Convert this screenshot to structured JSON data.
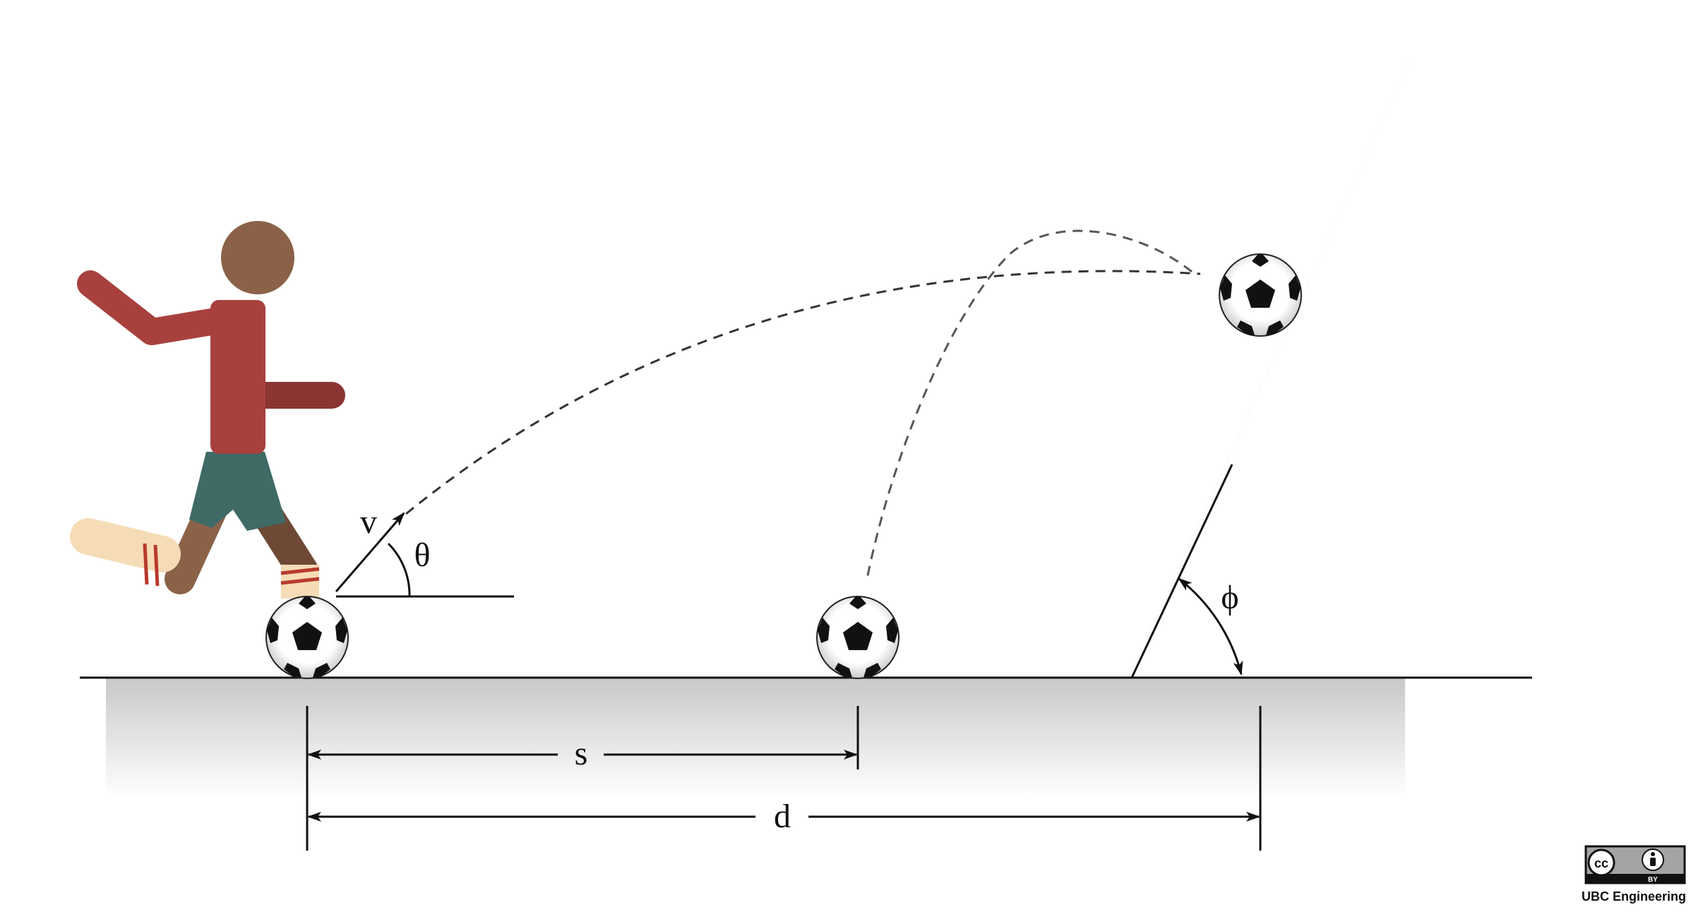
{
  "diagram": {
    "labels": {
      "velocity": "v",
      "launch_angle": "θ",
      "wall_angle": "ϕ",
      "bounce_distance": "s",
      "wall_distance": "d"
    },
    "license": {
      "badge_left": "cc",
      "badge_right": "BY",
      "credit": "UBC Engineering"
    },
    "colors": {
      "ground_line": "#111111",
      "ground_shade_top": "#c7c8ca",
      "brick": "#c9a088",
      "mortar": "#ffffff",
      "shirt": "#a8413d",
      "shirt_dark": "#8a3532",
      "skin": "#8b6248",
      "skin_dark": "#6e4a36",
      "shorts": "#3f6a66",
      "sock": "#f6dcb6",
      "sock_stripe": "#b83a2e",
      "ball_white": "#ffffff",
      "ball_black": "#111111"
    }
  }
}
